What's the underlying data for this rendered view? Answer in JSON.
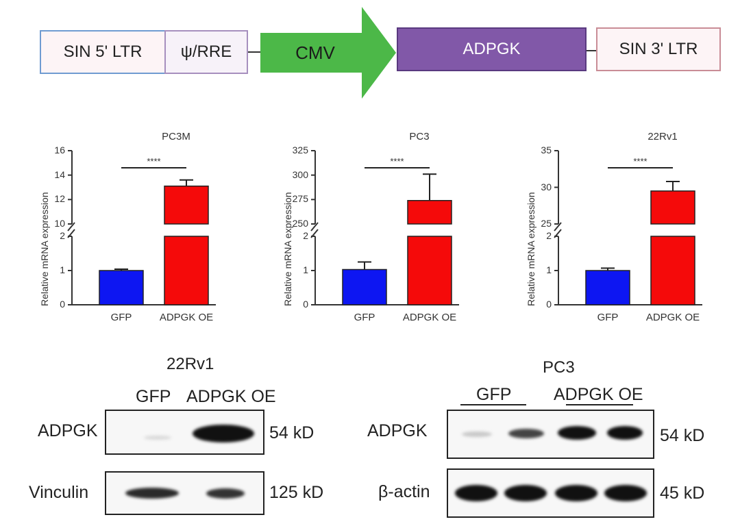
{
  "construct": {
    "ltr5": "SIN 5' LTR",
    "psi": "ψ/RRE",
    "cmv": "CMV",
    "gene": "ADPGK",
    "ltr3": "SIN 3' LTR",
    "colors": {
      "cmv": "#4cb848",
      "gene": "#8158a8"
    }
  },
  "charts_meta": {
    "ylabel": "Relative mRNA expression",
    "significance": "****",
    "colors": {
      "GFP": "#0d16f2",
      "ADPGK OE": "#f50a0a"
    }
  },
  "chart_data": [
    {
      "type": "bar",
      "title": "PC3M",
      "categories": [
        "GFP",
        "ADPGK OE"
      ],
      "values": [
        1.0,
        13.1
      ],
      "errors": [
        0.04,
        0.5
      ],
      "ylabel": "Relative mRNA expression",
      "y_lower_ticks": [
        0,
        1,
        2
      ],
      "y_upper_ticks": [
        10,
        12,
        14,
        16
      ],
      "y_lower_range": [
        0,
        2
      ],
      "y_upper_range": [
        10,
        16
      ],
      "axis_break": true,
      "significance": "****"
    },
    {
      "type": "bar",
      "title": "PC3",
      "categories": [
        "GFP",
        "ADPGK OE"
      ],
      "values": [
        1.03,
        274
      ],
      "errors": [
        0.22,
        27
      ],
      "ylabel": "Relative mRNA expression",
      "y_lower_ticks": [
        0,
        1,
        2
      ],
      "y_upper_ticks": [
        250,
        275,
        300,
        325
      ],
      "y_lower_range": [
        0,
        2
      ],
      "y_upper_range": [
        250,
        325
      ],
      "axis_break": true,
      "significance": "****"
    },
    {
      "type": "bar",
      "title": "22Rv1",
      "categories": [
        "GFP",
        "ADPGK OE"
      ],
      "values": [
        1.0,
        29.5
      ],
      "errors": [
        0.07,
        1.3
      ],
      "ylabel": "Relative mRNA expression",
      "y_lower_ticks": [
        0,
        1,
        2
      ],
      "y_upper_ticks": [
        25,
        30,
        35
      ],
      "y_lower_range": [
        0,
        2
      ],
      "y_upper_range": [
        25,
        35
      ],
      "axis_break": true,
      "significance": "****"
    }
  ],
  "blots": {
    "left": {
      "title": "22Rv1",
      "lanes": [
        "GFP",
        "ADPGK OE"
      ],
      "rows": [
        {
          "protein": "ADPGK",
          "size": "54 kD"
        },
        {
          "protein": "Vinculin",
          "size": "125 kD"
        }
      ]
    },
    "right": {
      "title": "PC3",
      "groups": [
        "GFP",
        "ADPGK OE"
      ],
      "rows": [
        {
          "protein": "ADPGK",
          "size": "54 kD"
        },
        {
          "protein": "β-actin",
          "size": "45 kD"
        }
      ]
    }
  }
}
